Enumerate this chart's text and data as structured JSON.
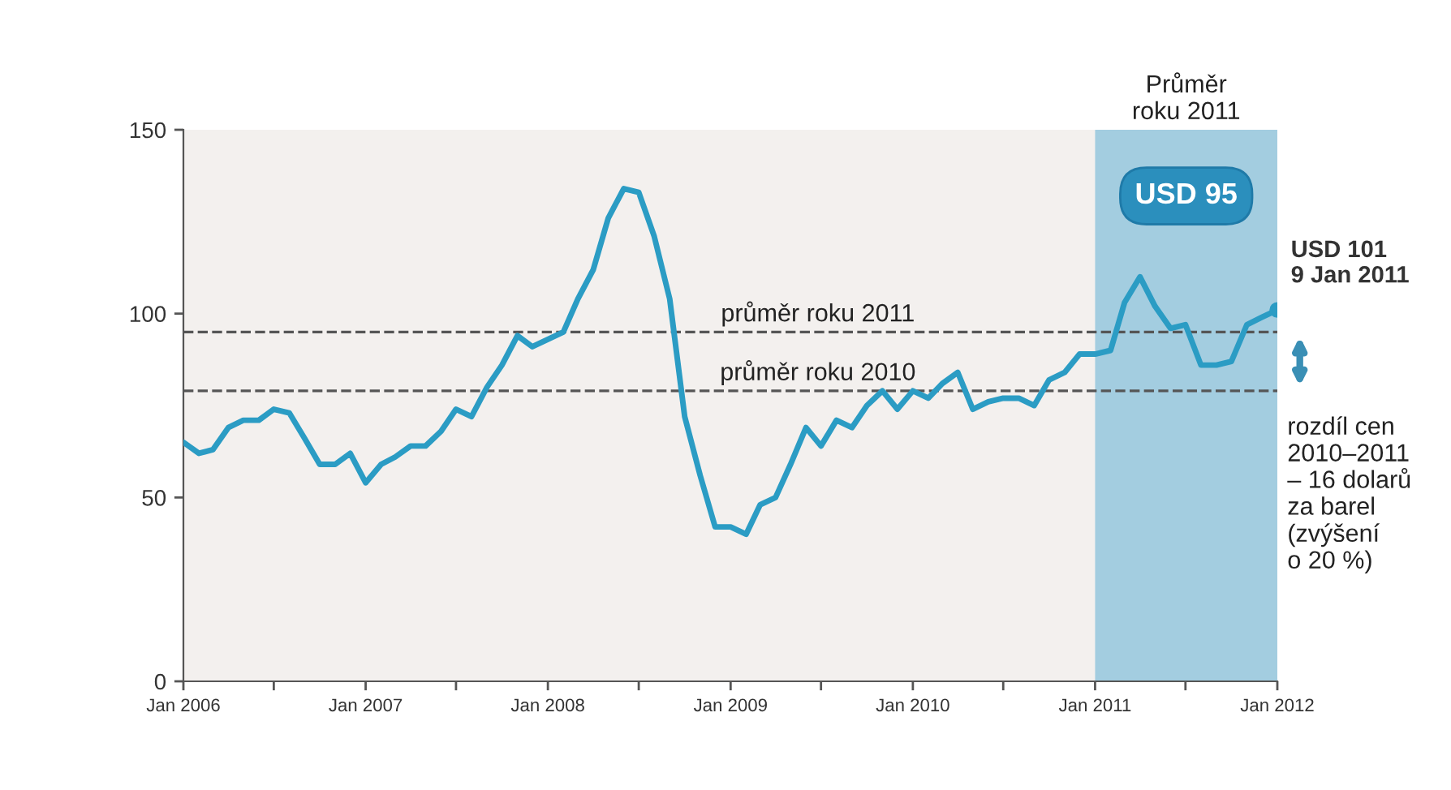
{
  "chart_data": {
    "type": "line",
    "x": [
      "2006-01",
      "2006-02",
      "2006-03",
      "2006-04",
      "2006-05",
      "2006-06",
      "2006-07",
      "2006-08",
      "2006-09",
      "2006-10",
      "2006-11",
      "2006-12",
      "2007-01",
      "2007-02",
      "2007-03",
      "2007-04",
      "2007-05",
      "2007-06",
      "2007-07",
      "2007-08",
      "2007-09",
      "2007-10",
      "2007-11",
      "2007-12",
      "2008-01",
      "2008-02",
      "2008-03",
      "2008-04",
      "2008-05",
      "2008-06",
      "2008-07",
      "2008-08",
      "2008-09",
      "2008-10",
      "2008-11",
      "2008-12",
      "2009-01",
      "2009-02",
      "2009-03",
      "2009-04",
      "2009-05",
      "2009-06",
      "2009-07",
      "2009-08",
      "2009-09",
      "2009-10",
      "2009-11",
      "2009-12",
      "2010-01",
      "2010-02",
      "2010-03",
      "2010-04",
      "2010-05",
      "2010-06",
      "2010-07",
      "2010-08",
      "2010-09",
      "2010-10",
      "2010-11",
      "2010-12",
      "2011-01",
      "2011-02",
      "2011-03",
      "2011-04",
      "2011-05",
      "2011-06",
      "2011-07",
      "2011-08",
      "2011-09",
      "2011-10",
      "2011-11",
      "2011-12",
      "2012-01"
    ],
    "series": [
      {
        "color": "#2b9cc4",
        "values": [
          65,
          62,
          63,
          69,
          71,
          71,
          74,
          73,
          66,
          59,
          59,
          62,
          54,
          59,
          61,
          64,
          64,
          68,
          74,
          72,
          80,
          86,
          94,
          91,
          93,
          95,
          104,
          112,
          126,
          134,
          133,
          121,
          104,
          72,
          56,
          42,
          42,
          40,
          48,
          50,
          59,
          69,
          64,
          71,
          69,
          75,
          79,
          74,
          79,
          77,
          81,
          84,
          74,
          76,
          77,
          77,
          75,
          82,
          84,
          89,
          89,
          90,
          103,
          110,
          102,
          96,
          97,
          86,
          86,
          87,
          97,
          99,
          101
        ]
      }
    ],
    "xlim": [
      "2006-01",
      "2012-01"
    ],
    "xticks": [
      {
        "value": "2006-01",
        "label": "Jan 2006"
      },
      {
        "value": "2006-07",
        "label": null
      },
      {
        "value": "2007-01",
        "label": "Jan 2007"
      },
      {
        "value": "2007-07",
        "label": null
      },
      {
        "value": "2008-01",
        "label": "Jan 2008"
      },
      {
        "value": "2008-07",
        "label": null
      },
      {
        "value": "2009-01",
        "label": "Jan 2009"
      },
      {
        "value": "2009-07",
        "label": null
      },
      {
        "value": "2010-01",
        "label": "Jan 2010"
      },
      {
        "value": "2010-07",
        "label": null
      },
      {
        "value": "2011-01",
        "label": "Jan 2011"
      },
      {
        "value": "2011-07",
        "label": null
      },
      {
        "value": "2012-01",
        "label": "Jan 2012"
      }
    ],
    "ylim": [
      0,
      150
    ],
    "yticks": [
      0,
      50,
      100,
      150
    ],
    "grid": false,
    "marker": "none",
    "line_style": "solid",
    "ref_lines": [
      {
        "axis": "y",
        "value": 95,
        "label": "průměr roku 2011",
        "color": "#555555",
        "line_style": "dashed"
      },
      {
        "axis": "y",
        "value": 79,
        "label": "průměr roku 2010",
        "color": "#555555",
        "line_style": "dashed"
      }
    ],
    "bands": [
      {
        "axis": "x",
        "from": "2011-01",
        "to": "2012-01",
        "label": "Průměr\nroku 2011",
        "color": "#a3cde0"
      }
    ],
    "annotations": [
      "USD 95",
      {
        "text": "USD 101\n9 Jan 2011",
        "x": "2012-01",
        "y": 101
      },
      "rozdíl cen\n2010–2011\n– 16 dolarů\nza barel\n(zvýšení\no 20 %)"
    ]
  }
}
